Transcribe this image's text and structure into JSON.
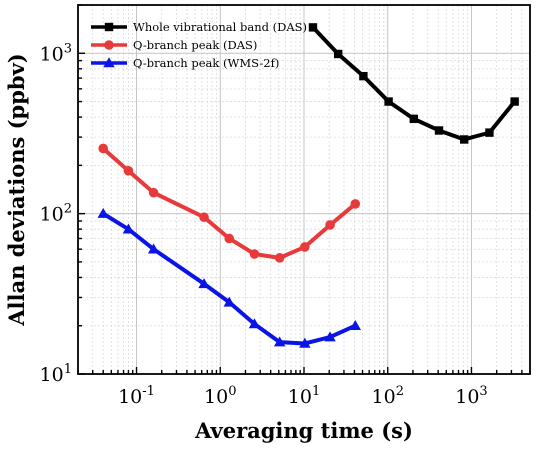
{
  "chart_data": {
    "type": "line",
    "title": "",
    "xlabel": "Averaging time (s)",
    "ylabel": "Allan deviations (ppbv)",
    "xscale": "log",
    "yscale": "log",
    "xlim": [
      0.02,
      5000
    ],
    "ylim": [
      10,
      2000
    ],
    "grid": true,
    "legend_position": "top-left",
    "x_ticks": [
      {
        "value": 0.1,
        "base": "10",
        "exp": "-1"
      },
      {
        "value": 1,
        "base": "10",
        "exp": "0"
      },
      {
        "value": 10,
        "base": "10",
        "exp": "1"
      },
      {
        "value": 100,
        "base": "10",
        "exp": "2"
      },
      {
        "value": 1000,
        "base": "10",
        "exp": "3"
      }
    ],
    "y_ticks": [
      {
        "value": 10,
        "base": "10",
        "exp": "1"
      },
      {
        "value": 100,
        "base": "10",
        "exp": "2"
      },
      {
        "value": 1000,
        "base": "10",
        "exp": "3"
      }
    ],
    "series": [
      {
        "name": "Whole vibrational band (DAS)",
        "color": "#000000",
        "marker": "square",
        "x": [
          12.8,
          25.6,
          51.2,
          102.4,
          204.8,
          409.6,
          819.2,
          1638.4,
          3276.8
        ],
        "y": [
          1450,
          990,
          720,
          500,
          390,
          330,
          290,
          320,
          500
        ]
      },
      {
        "name": "Q-branch peak (DAS)",
        "color": "#e83a3a",
        "marker": "circle",
        "x": [
          0.04,
          0.08,
          0.16,
          0.64,
          1.28,
          2.56,
          5.12,
          10.24,
          20.48,
          40.96
        ],
        "y": [
          255,
          185,
          135,
          95,
          70,
          56,
          53,
          62,
          85,
          115
        ]
      },
      {
        "name": "Q-branch peak (WMS-2f)",
        "color": "#0a14e6",
        "marker": "triangle",
        "x": [
          0.04,
          0.08,
          0.16,
          0.64,
          1.28,
          2.56,
          5.12,
          10.24,
          20.48,
          40.96
        ],
        "y": [
          100,
          80,
          60,
          36.5,
          28,
          20.5,
          15.8,
          15.5,
          17,
          20
        ]
      }
    ]
  }
}
